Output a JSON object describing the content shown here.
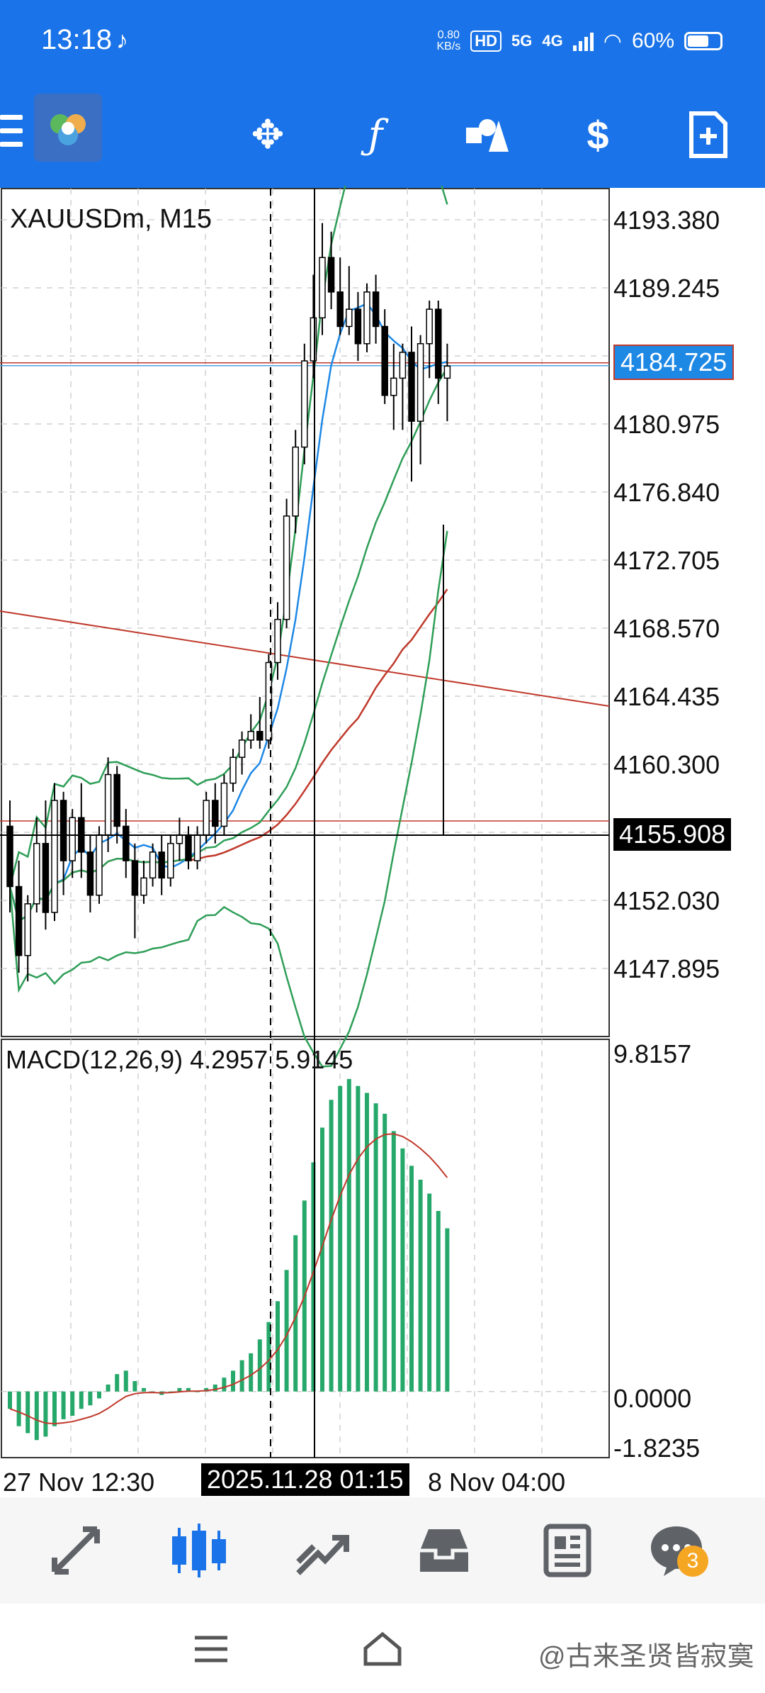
{
  "status_bar": {
    "time": "13:18",
    "net_speed_top": "0.80",
    "net_speed_bottom": "KB/s",
    "hd_label": "HD",
    "net_5g": "5G",
    "net_4g": "4G",
    "battery": "60%"
  },
  "toolbar": {
    "menu_icon": "hamburger-icon",
    "logo_icon": "metatrader-logo",
    "buttons": [
      {
        "icon": "crosshair-move-icon",
        "glyph": "✥"
      },
      {
        "icon": "indicator-f-icon",
        "glyph": "ƒ"
      },
      {
        "icon": "objects-icon",
        "glyph": "◭"
      },
      {
        "icon": "trade-dollar-icon",
        "glyph": "$"
      },
      {
        "icon": "new-order-icon",
        "glyph": "+"
      }
    ]
  },
  "chart": {
    "symbol_label": "XAUUSDm, M15",
    "price_labels": [
      "4193.380",
      "4189.245",
      "4184.725",
      "4180.975",
      "4176.840",
      "4172.705",
      "4168.570",
      "4164.435",
      "4160.300",
      "4155.908",
      "4152.030",
      "4147.895"
    ],
    "current_price_tag": "4184.725",
    "crosshair_price_tag": "4155.908",
    "macd_label": "MACD(12,26,9) 4.2957 5.9145",
    "macd_labels": [
      "9.8157",
      "0.0000",
      "-1.8235"
    ],
    "time_labels": [
      "27 Nov 12:30",
      "8 Nov 04:00"
    ],
    "crosshair_time_tag": "2025.11.28 01:15",
    "colors": {
      "bull": "#ffffff",
      "bear": "#000000",
      "bollinger": "#2e9e57",
      "ma_blue": "#1e88e5",
      "ma_red": "#c0392b",
      "macd_hist": "#26a86b",
      "macd_signal": "#c0392b",
      "current_price_tag_bg": "#1e88e5",
      "crosshair_tag_bg": "#000000"
    }
  },
  "chart_data": {
    "type": "candlestick",
    "symbol": "XAUUSDm",
    "timeframe": "M15",
    "ylim": [
      4145.8,
      4195.0
    ],
    "candles": [
      [
        4158.0,
        4159.5,
        4153.0,
        4154.5
      ],
      [
        4154.5,
        4156.0,
        4149.5,
        4150.5
      ],
      [
        4150.5,
        4154.0,
        4149.0,
        4153.5
      ],
      [
        4153.5,
        4158.5,
        4153.0,
        4157.0
      ],
      [
        4157.0,
        4159.5,
        4152.0,
        4153.0
      ],
      [
        4153.0,
        4160.5,
        4152.5,
        4159.5
      ],
      [
        4159.5,
        4160.0,
        4154.0,
        4156.0
      ],
      [
        4156.0,
        4159.0,
        4155.0,
        4158.5
      ],
      [
        4158.5,
        4160.5,
        4155.0,
        4156.5
      ],
      [
        4156.5,
        4157.5,
        4153.0,
        4154.0
      ],
      [
        4154.0,
        4158.0,
        4153.5,
        4157.5
      ],
      [
        4157.5,
        4162.0,
        4156.5,
        4161.0
      ],
      [
        4161.0,
        4161.5,
        4157.0,
        4158.0
      ],
      [
        4158.0,
        4159.0,
        4155.0,
        4156.0
      ],
      [
        4156.0,
        4157.0,
        4151.5,
        4154.0
      ],
      [
        4154.0,
        4156.0,
        4153.5,
        4155.0
      ],
      [
        4155.0,
        4157.0,
        4154.5,
        4156.5
      ],
      [
        4156.5,
        4157.5,
        4154.0,
        4155.0
      ],
      [
        4155.0,
        4157.5,
        4154.5,
        4157.0
      ],
      [
        4157.0,
        4158.5,
        4156.0,
        4157.5
      ],
      [
        4157.5,
        4158.0,
        4155.5,
        4156.0
      ],
      [
        4156.0,
        4158.0,
        4155.5,
        4157.5
      ],
      [
        4157.5,
        4160.0,
        4157.0,
        4159.5
      ],
      [
        4159.5,
        4160.5,
        4157.0,
        4158.0
      ],
      [
        4158.0,
        4161.0,
        4157.5,
        4160.5
      ],
      [
        4160.5,
        4162.5,
        4160.0,
        4162.0
      ],
      [
        4162.0,
        4163.5,
        4161.0,
        4163.0
      ],
      [
        4163.0,
        4164.5,
        4162.5,
        4163.5
      ],
      [
        4163.5,
        4165.5,
        4162.5,
        4163.0
      ],
      [
        4163.0,
        4168.0,
        4162.5,
        4167.5
      ],
      [
        4167.5,
        4171.0,
        4166.5,
        4170.0
      ],
      [
        4170.0,
        4177.0,
        4169.5,
        4176.0
      ],
      [
        4176.0,
        4181.0,
        4175.0,
        4180.0
      ],
      [
        4180.0,
        4186.0,
        4179.0,
        4185.0
      ],
      [
        4185.0,
        4190.0,
        4184.0,
        4187.5
      ],
      [
        4187.5,
        4193.0,
        4186.5,
        4191.0
      ],
      [
        4191.0,
        4192.5,
        4188.0,
        4189.0
      ],
      [
        4189.0,
        4191.0,
        4186.5,
        4187.0
      ],
      [
        4187.0,
        4190.5,
        4186.5,
        4188.0
      ],
      [
        4188.0,
        4189.0,
        4185.0,
        4186.0
      ],
      [
        4186.0,
        4189.5,
        4185.5,
        4189.0
      ],
      [
        4189.0,
        4190.0,
        4186.0,
        4187.0
      ],
      [
        4187.0,
        4188.0,
        4182.5,
        4183.0
      ],
      [
        4183.0,
        4186.0,
        4181.0,
        4184.0
      ],
      [
        4184.0,
        4186.0,
        4181.0,
        4185.5
      ],
      [
        4185.5,
        4187.0,
        4178.0,
        4181.5
      ],
      [
        4181.5,
        4186.5,
        4179.0,
        4186.0
      ],
      [
        4186.0,
        4188.5,
        4184.0,
        4188.0
      ],
      [
        4188.0,
        4188.5,
        4182.5,
        4184.0
      ],
      [
        4184.0,
        4186.0,
        4181.5,
        4184.7
      ]
    ],
    "macd_histogram": [
      -0.5,
      -1.0,
      -1.2,
      -1.4,
      -1.3,
      -1.0,
      -0.8,
      -0.7,
      -0.5,
      -0.4,
      -0.2,
      0.2,
      0.5,
      0.6,
      0.3,
      0.1,
      0.0,
      -0.1,
      0.0,
      0.1,
      0.1,
      0.0,
      0.1,
      0.2,
      0.4,
      0.6,
      0.9,
      1.1,
      1.5,
      2.0,
      2.6,
      3.5,
      4.5,
      5.5,
      6.6,
      7.6,
      8.4,
      8.8,
      9.0,
      8.8,
      8.6,
      8.3,
      8.0,
      7.5,
      7.0,
      6.5,
      6.1,
      5.7,
      5.2,
      4.7
    ],
    "macd_ylim": [
      -1.8235,
      9.8157
    ],
    "macd_signal": "MACD(12,26,9)",
    "macd_value": 4.2957,
    "signal_value": 5.9145
  },
  "bottom_nav": {
    "items": [
      {
        "icon": "quotes-icon",
        "glyph": "⇅"
      },
      {
        "icon": "chart-icon",
        "glyph": "▮"
      },
      {
        "icon": "trade-icon",
        "glyph": "⟋"
      },
      {
        "icon": "history-icon",
        "glyph": "▭"
      },
      {
        "icon": "news-icon",
        "glyph": "▤"
      },
      {
        "icon": "messages-icon",
        "glyph": "●"
      }
    ],
    "messages_badge": "3"
  },
  "system_nav": {
    "watermark": "@古来圣贤皆寂寞"
  }
}
